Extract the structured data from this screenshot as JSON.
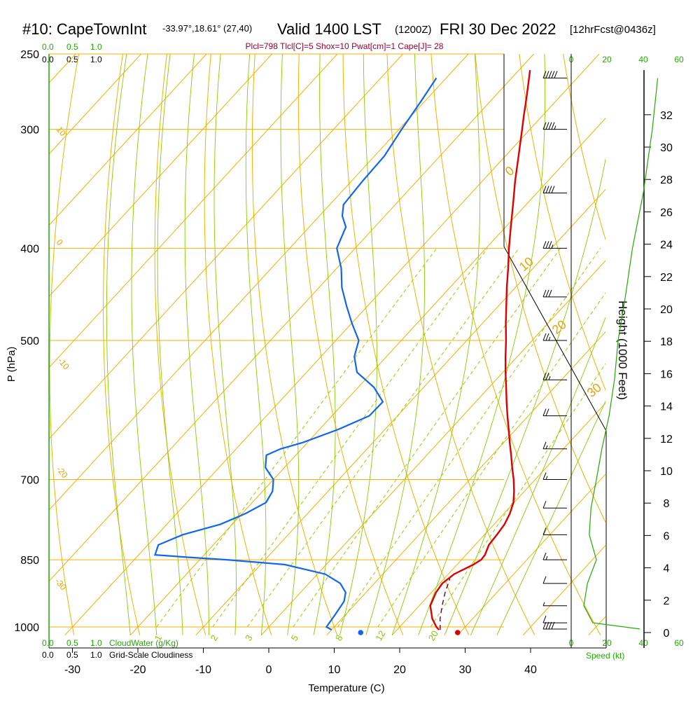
{
  "header": {
    "station": "#10: CapeTownInt",
    "coords": "-33.97°,18.61° (27,40)",
    "valid": "Valid 1400 LST",
    "zulu": "(1200Z)",
    "date": "FRI 30 Dec 2022",
    "forecast": "[12hrFcst@0436z]"
  },
  "stats_line": "Plcl=798 Tlcl[C]=5 Shox=10 Pwat[cm]=1 Cape[J]= 28",
  "scales": {
    "cloudwater_ticks": [
      "0.0",
      "0.5",
      "1.0"
    ],
    "cloudiness_ticks": [
      "0.0",
      "0.5",
      "1.0"
    ],
    "cloudwater_label": "CloudWater (g/Kg)",
    "cloudiness_label": "Grid-Scale Cloudiness",
    "speed_ticks": [
      "0",
      "20",
      "40",
      "60"
    ],
    "speed_label": "Speed (kt)"
  },
  "colors": {
    "temperature": "#dd0000",
    "dewpoint": "#1166ee",
    "isotherm": "#f2b000",
    "dry_adiabat": "#f2b000",
    "moist_adiabat": "#88cc00",
    "mixing_ratio": "#99cc00",
    "speed": "#22aa00",
    "parcel": "#660033"
  },
  "chart_data": {
    "type": "skew-t",
    "xlabel": "Temperature (C)",
    "ylabel": "P (hPa)",
    "y2label": "Height (1000 Feet)",
    "x_ticks": [
      "-30",
      "-20",
      "-10",
      "0",
      "10",
      "20",
      "30",
      "40"
    ],
    "p_ticks": [
      "250",
      "300",
      "400",
      "500",
      "700",
      "850",
      "1000"
    ],
    "height_ticks": [
      "0",
      "2",
      "4",
      "6",
      "8",
      "10",
      "12",
      "14",
      "16",
      "18",
      "20",
      "22",
      "24",
      "26",
      "28",
      "30",
      "32"
    ],
    "isotherm_labels": [
      "10",
      "0",
      "-10",
      "-20",
      "-30"
    ],
    "dry_adiabat_labels": [
      "0",
      "10",
      "20",
      "30"
    ],
    "mixing_ratio_labels": [
      "1",
      "2",
      "3",
      "5",
      "8",
      "12",
      "20"
    ],
    "xlim": [
      -33,
      46
    ],
    "plim": [
      1020,
      250
    ],
    "temperature": {
      "p": [
        1007,
        1000,
        980,
        950,
        920,
        900,
        880,
        860,
        850,
        840,
        820,
        800,
        780,
        760,
        740,
        720,
        700,
        680,
        660,
        640,
        620,
        600,
        580,
        560,
        540,
        520,
        500,
        480,
        460,
        440,
        420,
        400,
        380,
        360,
        340,
        320,
        300,
        290,
        280,
        270,
        260
      ],
      "t": [
        26.4,
        25.6,
        23.8,
        21.7,
        20.7,
        20.4,
        20.9,
        22.5,
        23.0,
        22.9,
        22.1,
        21.9,
        21.6,
        20.9,
        19.9,
        18.4,
        16.7,
        14.8,
        12.9,
        10.9,
        8.9,
        6.8,
        4.7,
        2.6,
        0.4,
        -1.8,
        -4.0,
        -6.4,
        -8.8,
        -11.3,
        -13.8,
        -16.5,
        -19.2,
        -22.0,
        -25.0,
        -28.0,
        -31.2,
        -32.9,
        -34.6,
        -36.4,
        -38.3
      ]
    },
    "dewpoint": {
      "p": [
        1007,
        1000,
        970,
        940,
        920,
        900,
        880,
        860,
        850,
        845,
        840,
        820,
        800,
        780,
        760,
        740,
        720,
        700,
        680,
        660,
        650,
        640,
        620,
        600,
        580,
        560,
        540,
        520,
        500,
        480,
        460,
        440,
        420,
        400,
        380,
        370,
        360,
        340,
        320,
        300,
        280,
        265
      ],
      "td": [
        10.0,
        8.8,
        8.4,
        7.9,
        6.9,
        4.8,
        1.2,
        -6.3,
        -15.8,
        -22.0,
        -27.5,
        -28.4,
        -26.1,
        -21.8,
        -19.5,
        -17.9,
        -18.5,
        -20.0,
        -22.9,
        -24.5,
        -23.2,
        -20.7,
        -17.1,
        -14.3,
        -14.2,
        -17.6,
        -22.3,
        -24.9,
        -26.5,
        -29.9,
        -33.2,
        -36.5,
        -39.3,
        -42.8,
        -44.4,
        -46.5,
        -47.9,
        -48.3,
        -48.5,
        -49.6,
        -50.6,
        -51.5
      ]
    },
    "parcel": {
      "p": [
        1007,
        980,
        950,
        920,
        890
      ],
      "t": [
        26.6,
        25.0,
        23.5,
        22.1,
        20.9
      ]
    },
    "surface_temperature": 28.0,
    "surface_dewpoint": 13.5,
    "wind_speed": {
      "p": [
        1005,
        990,
        950,
        900,
        850,
        800,
        750,
        700,
        650,
        600,
        550,
        500,
        450,
        400,
        350,
        300,
        265
      ],
      "kt": [
        38,
        12,
        7,
        9,
        14,
        10,
        11,
        14,
        17,
        21,
        24,
        26,
        30,
        34,
        40,
        45,
        48
      ]
    }
  }
}
